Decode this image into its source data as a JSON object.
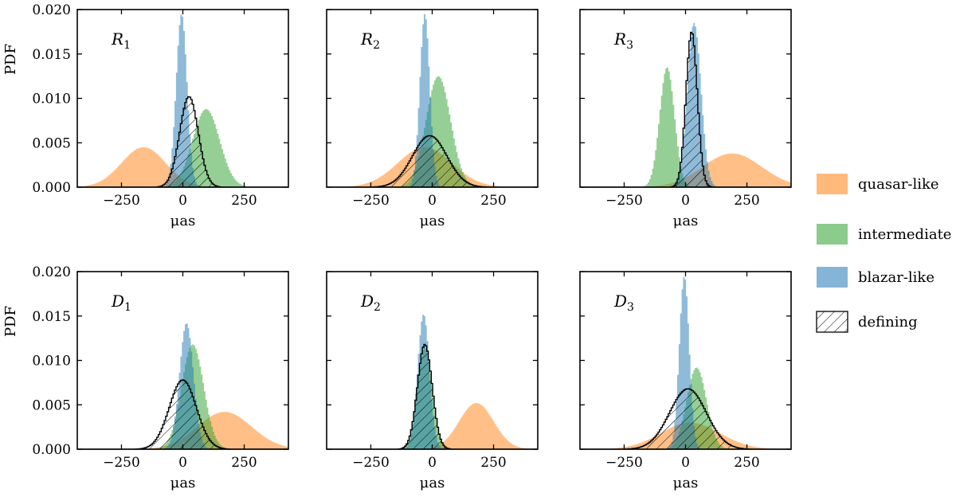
{
  "chart_data": {
    "type": "histogram",
    "x_unit_label": "μas",
    "ylabel": "PDF",
    "xlim": [
      -430,
      430
    ],
    "ylim": [
      0,
      0.02
    ],
    "xticks": [
      -250,
      0,
      250
    ],
    "xtick_labels": [
      "−250",
      "0",
      "250"
    ],
    "yticks": [
      0,
      0.005,
      0.01,
      0.015,
      0.02
    ],
    "ytick_labels": [
      "0.000",
      "0.005",
      "0.010",
      "0.015",
      "0.020"
    ],
    "colors": {
      "quasar-like": "#ff7f0e",
      "intermediate": "#2ca02c",
      "blazar-like": "#1f77b4",
      "defining": "#000000"
    },
    "legend": {
      "placement": "right",
      "entries": [
        {
          "key": "quasar-like",
          "label": "quasar-like",
          "style": "fill"
        },
        {
          "key": "intermediate",
          "label": "intermediate",
          "style": "fill"
        },
        {
          "key": "blazar-like",
          "label": "blazar-like",
          "style": "fill"
        },
        {
          "key": "defining",
          "label": "defining",
          "style": "hatch"
        }
      ]
    },
    "panels": [
      {
        "id": "R1",
        "letter": "R",
        "sub": "1",
        "show_ylabel": true,
        "series": [
          {
            "key": "quasar-like",
            "mean": -160,
            "sd": 90,
            "peak": 0.0045
          },
          {
            "key": "intermediate",
            "mean": 95,
            "sd": 55,
            "peak": 0.0088
          },
          {
            "key": "blazar-like",
            "mean": -5,
            "sd": 22,
            "peak": 0.0195
          },
          {
            "key": "defining",
            "mean": 25,
            "sd": 38,
            "peak": 0.0102
          }
        ]
      },
      {
        "id": "R2",
        "letter": "R",
        "sub": "2",
        "show_ylabel": false,
        "series": [
          {
            "key": "quasar-like",
            "mean": -30,
            "sd": 110,
            "peak": 0.0045
          },
          {
            "key": "intermediate",
            "mean": 25,
            "sd": 50,
            "peak": 0.0125
          },
          {
            "key": "blazar-like",
            "mean": -30,
            "sd": 20,
            "peak": 0.0195
          },
          {
            "key": "defining",
            "mean": -10,
            "sd": 70,
            "peak": 0.0058
          }
        ]
      },
      {
        "id": "R3",
        "letter": "R",
        "sub": "3",
        "show_ylabel": false,
        "series": [
          {
            "key": "quasar-like",
            "mean": 190,
            "sd": 120,
            "peak": 0.0038
          },
          {
            "key": "intermediate",
            "mean": -75,
            "sd": 30,
            "peak": 0.0135
          },
          {
            "key": "blazar-like",
            "mean": 35,
            "sd": 28,
            "peak": 0.0185
          },
          {
            "key": "defining",
            "mean": 25,
            "sd": 23,
            "peak": 0.0175
          }
        ]
      },
      {
        "id": "D1",
        "letter": "D",
        "sub": "1",
        "show_ylabel": true,
        "series": [
          {
            "key": "quasar-like",
            "mean": 170,
            "sd": 110,
            "peak": 0.0042
          },
          {
            "key": "intermediate",
            "mean": 40,
            "sd": 45,
            "peak": 0.0118
          },
          {
            "key": "blazar-like",
            "mean": 15,
            "sd": 28,
            "peak": 0.0142
          },
          {
            "key": "defining",
            "mean": 0,
            "sd": 55,
            "peak": 0.0078
          }
        ]
      },
      {
        "id": "D2",
        "letter": "D",
        "sub": "2",
        "show_ylabel": false,
        "series": [
          {
            "key": "quasar-like",
            "mean": 180,
            "sd": 70,
            "peak": 0.0052
          },
          {
            "key": "intermediate",
            "mean": -30,
            "sd": 30,
            "peak": 0.0115
          },
          {
            "key": "blazar-like",
            "mean": -35,
            "sd": 24,
            "peak": 0.0152
          },
          {
            "key": "defining",
            "mean": -30,
            "sd": 30,
            "peak": 0.0118
          }
        ]
      },
      {
        "id": "D3",
        "letter": "D",
        "sub": "3",
        "show_ylabel": false,
        "series": [
          {
            "key": "quasar-like",
            "mean": 20,
            "sd": 120,
            "peak": 0.003
          },
          {
            "key": "intermediate",
            "mean": 45,
            "sd": 40,
            "peak": 0.0092
          },
          {
            "key": "blazar-like",
            "mean": -5,
            "sd": 20,
            "peak": 0.0195
          },
          {
            "key": "defining",
            "mean": 10,
            "sd": 75,
            "peak": 0.0068
          }
        ]
      }
    ]
  }
}
